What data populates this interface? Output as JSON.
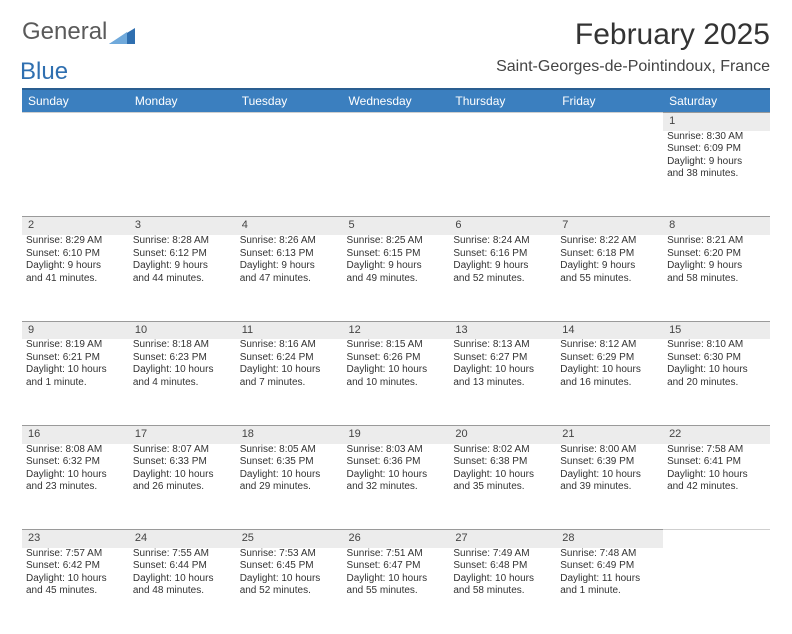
{
  "brand": {
    "part1": "General",
    "part2": "Blue"
  },
  "title": "February 2025",
  "location": "Saint-Georges-de-Pointindoux, France",
  "colors": {
    "header_bg": "#3b7fbf",
    "header_border": "#2a5e90",
    "daynum_bg": "#ececec",
    "daynum_border": "#9a9a9a",
    "text": "#333333"
  },
  "weekdays": [
    "Sunday",
    "Monday",
    "Tuesday",
    "Wednesday",
    "Thursday",
    "Friday",
    "Saturday"
  ],
  "weeks": [
    {
      "nums": [
        "",
        "",
        "",
        "",
        "",
        "",
        "1"
      ],
      "cells": [
        null,
        null,
        null,
        null,
        null,
        null,
        {
          "sunrise": "Sunrise: 8:30 AM",
          "sunset": "Sunset: 6:09 PM",
          "day1": "Daylight: 9 hours",
          "day2": "and 38 minutes."
        }
      ]
    },
    {
      "nums": [
        "2",
        "3",
        "4",
        "5",
        "6",
        "7",
        "8"
      ],
      "cells": [
        {
          "sunrise": "Sunrise: 8:29 AM",
          "sunset": "Sunset: 6:10 PM",
          "day1": "Daylight: 9 hours",
          "day2": "and 41 minutes."
        },
        {
          "sunrise": "Sunrise: 8:28 AM",
          "sunset": "Sunset: 6:12 PM",
          "day1": "Daylight: 9 hours",
          "day2": "and 44 minutes."
        },
        {
          "sunrise": "Sunrise: 8:26 AM",
          "sunset": "Sunset: 6:13 PM",
          "day1": "Daylight: 9 hours",
          "day2": "and 47 minutes."
        },
        {
          "sunrise": "Sunrise: 8:25 AM",
          "sunset": "Sunset: 6:15 PM",
          "day1": "Daylight: 9 hours",
          "day2": "and 49 minutes."
        },
        {
          "sunrise": "Sunrise: 8:24 AM",
          "sunset": "Sunset: 6:16 PM",
          "day1": "Daylight: 9 hours",
          "day2": "and 52 minutes."
        },
        {
          "sunrise": "Sunrise: 8:22 AM",
          "sunset": "Sunset: 6:18 PM",
          "day1": "Daylight: 9 hours",
          "day2": "and 55 minutes."
        },
        {
          "sunrise": "Sunrise: 8:21 AM",
          "sunset": "Sunset: 6:20 PM",
          "day1": "Daylight: 9 hours",
          "day2": "and 58 minutes."
        }
      ]
    },
    {
      "nums": [
        "9",
        "10",
        "11",
        "12",
        "13",
        "14",
        "15"
      ],
      "cells": [
        {
          "sunrise": "Sunrise: 8:19 AM",
          "sunset": "Sunset: 6:21 PM",
          "day1": "Daylight: 10 hours",
          "day2": "and 1 minute."
        },
        {
          "sunrise": "Sunrise: 8:18 AM",
          "sunset": "Sunset: 6:23 PM",
          "day1": "Daylight: 10 hours",
          "day2": "and 4 minutes."
        },
        {
          "sunrise": "Sunrise: 8:16 AM",
          "sunset": "Sunset: 6:24 PM",
          "day1": "Daylight: 10 hours",
          "day2": "and 7 minutes."
        },
        {
          "sunrise": "Sunrise: 8:15 AM",
          "sunset": "Sunset: 6:26 PM",
          "day1": "Daylight: 10 hours",
          "day2": "and 10 minutes."
        },
        {
          "sunrise": "Sunrise: 8:13 AM",
          "sunset": "Sunset: 6:27 PM",
          "day1": "Daylight: 10 hours",
          "day2": "and 13 minutes."
        },
        {
          "sunrise": "Sunrise: 8:12 AM",
          "sunset": "Sunset: 6:29 PM",
          "day1": "Daylight: 10 hours",
          "day2": "and 16 minutes."
        },
        {
          "sunrise": "Sunrise: 8:10 AM",
          "sunset": "Sunset: 6:30 PM",
          "day1": "Daylight: 10 hours",
          "day2": "and 20 minutes."
        }
      ]
    },
    {
      "nums": [
        "16",
        "17",
        "18",
        "19",
        "20",
        "21",
        "22"
      ],
      "cells": [
        {
          "sunrise": "Sunrise: 8:08 AM",
          "sunset": "Sunset: 6:32 PM",
          "day1": "Daylight: 10 hours",
          "day2": "and 23 minutes."
        },
        {
          "sunrise": "Sunrise: 8:07 AM",
          "sunset": "Sunset: 6:33 PM",
          "day1": "Daylight: 10 hours",
          "day2": "and 26 minutes."
        },
        {
          "sunrise": "Sunrise: 8:05 AM",
          "sunset": "Sunset: 6:35 PM",
          "day1": "Daylight: 10 hours",
          "day2": "and 29 minutes."
        },
        {
          "sunrise": "Sunrise: 8:03 AM",
          "sunset": "Sunset: 6:36 PM",
          "day1": "Daylight: 10 hours",
          "day2": "and 32 minutes."
        },
        {
          "sunrise": "Sunrise: 8:02 AM",
          "sunset": "Sunset: 6:38 PM",
          "day1": "Daylight: 10 hours",
          "day2": "and 35 minutes."
        },
        {
          "sunrise": "Sunrise: 8:00 AM",
          "sunset": "Sunset: 6:39 PM",
          "day1": "Daylight: 10 hours",
          "day2": "and 39 minutes."
        },
        {
          "sunrise": "Sunrise: 7:58 AM",
          "sunset": "Sunset: 6:41 PM",
          "day1": "Daylight: 10 hours",
          "day2": "and 42 minutes."
        }
      ]
    },
    {
      "nums": [
        "23",
        "24",
        "25",
        "26",
        "27",
        "28",
        ""
      ],
      "cells": [
        {
          "sunrise": "Sunrise: 7:57 AM",
          "sunset": "Sunset: 6:42 PM",
          "day1": "Daylight: 10 hours",
          "day2": "and 45 minutes."
        },
        {
          "sunrise": "Sunrise: 7:55 AM",
          "sunset": "Sunset: 6:44 PM",
          "day1": "Daylight: 10 hours",
          "day2": "and 48 minutes."
        },
        {
          "sunrise": "Sunrise: 7:53 AM",
          "sunset": "Sunset: 6:45 PM",
          "day1": "Daylight: 10 hours",
          "day2": "and 52 minutes."
        },
        {
          "sunrise": "Sunrise: 7:51 AM",
          "sunset": "Sunset: 6:47 PM",
          "day1": "Daylight: 10 hours",
          "day2": "and 55 minutes."
        },
        {
          "sunrise": "Sunrise: 7:49 AM",
          "sunset": "Sunset: 6:48 PM",
          "day1": "Daylight: 10 hours",
          "day2": "and 58 minutes."
        },
        {
          "sunrise": "Sunrise: 7:48 AM",
          "sunset": "Sunset: 6:49 PM",
          "day1": "Daylight: 11 hours",
          "day2": "and 1 minute."
        },
        null
      ]
    }
  ]
}
